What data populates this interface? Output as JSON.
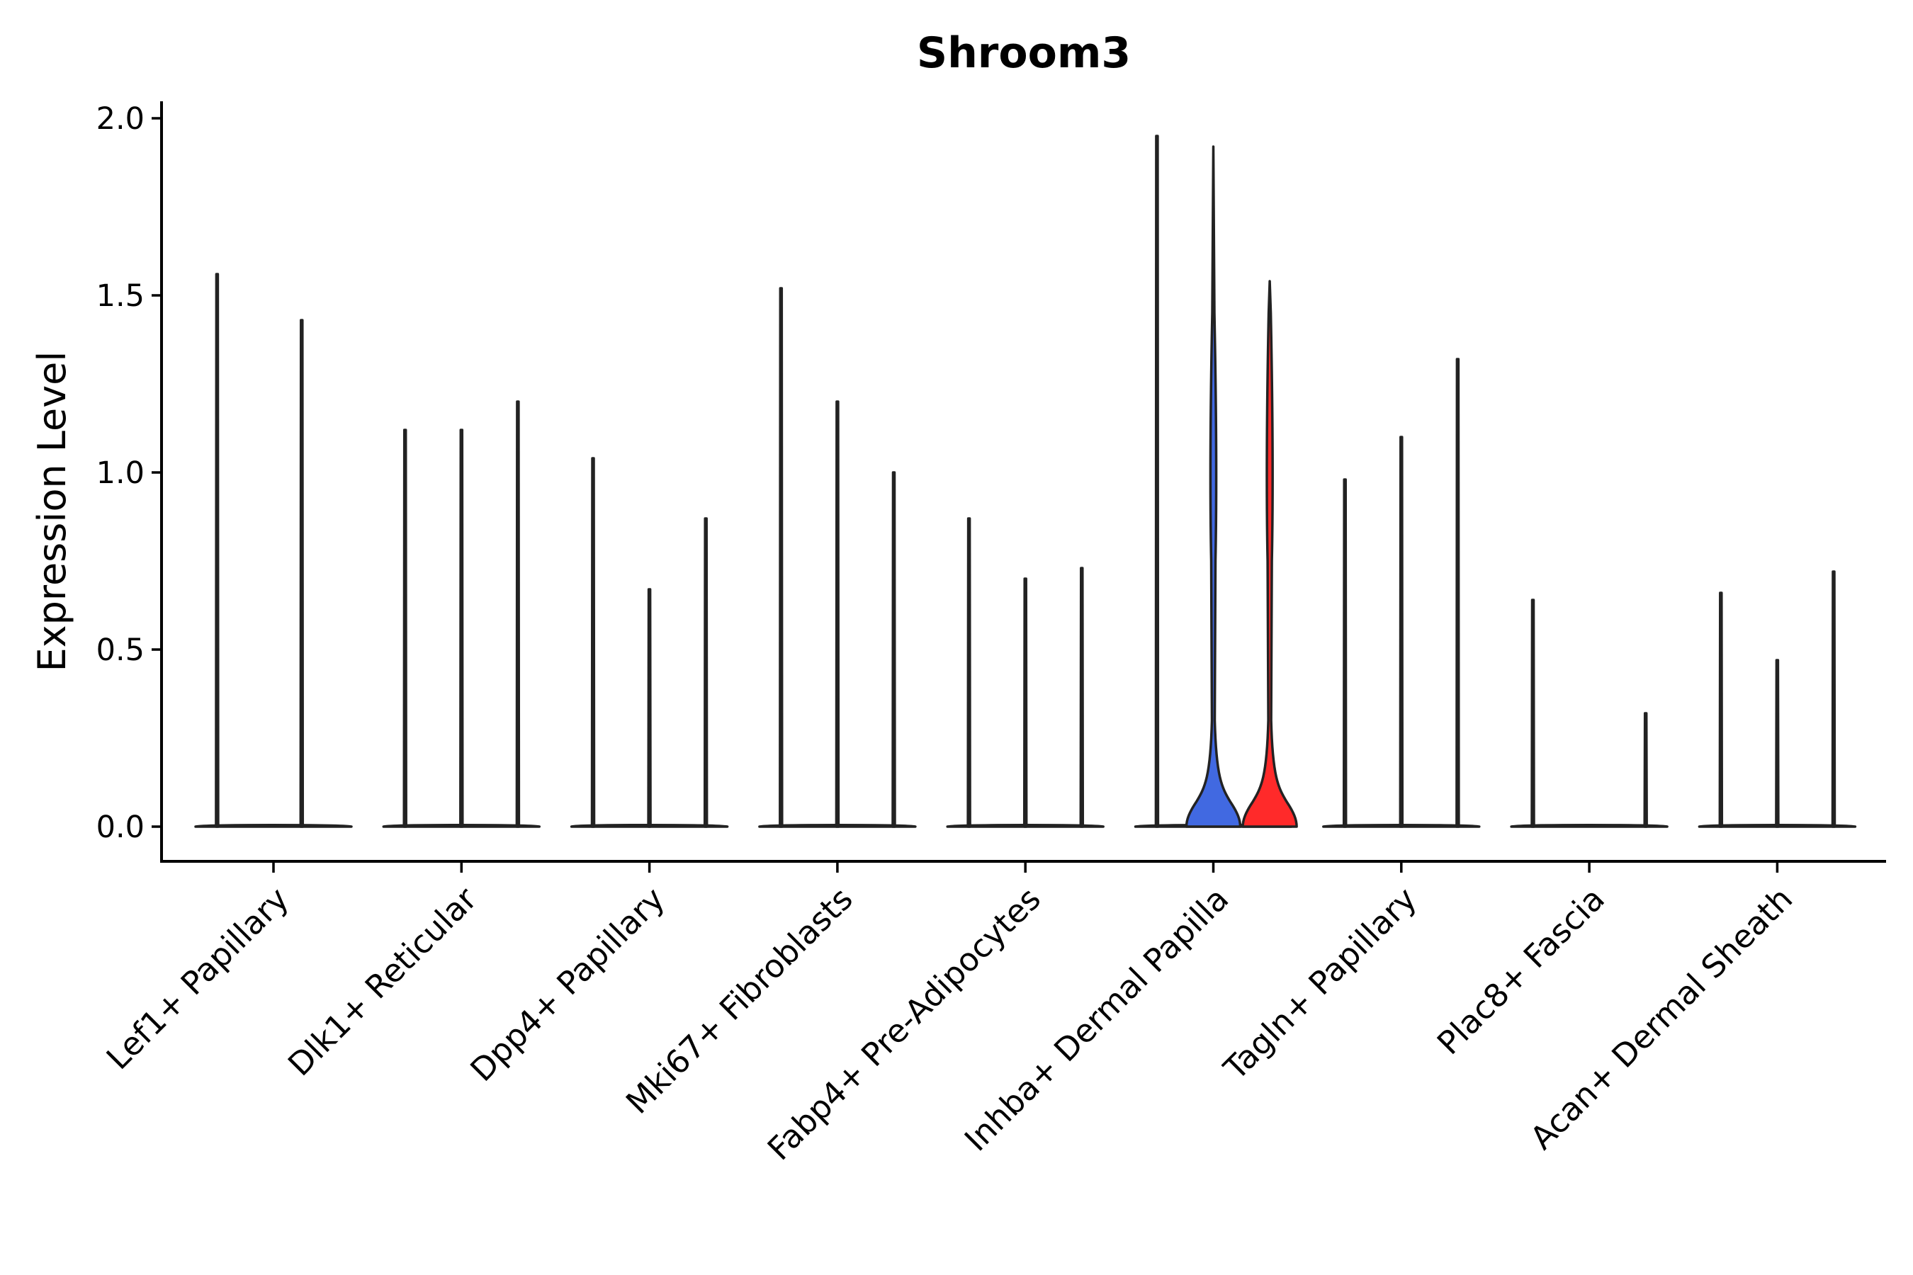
{
  "chart_data": {
    "type": "violin",
    "title": "Shroom3",
    "xlabel": "",
    "ylabel": "Expression Level",
    "ylim": [
      -0.1,
      2.05
    ],
    "yticks": [
      0.0,
      0.5,
      1.0,
      1.5,
      2.0
    ],
    "ytick_labels": [
      "0.0",
      "0.5",
      "1.0",
      "1.5",
      "2.0"
    ],
    "grid": false,
    "categories": [
      "Lef1+ Papillary",
      "Dlk1+ Reticular",
      "Dpp4+ Papillary",
      "Mki67+ Fibroblasts",
      "Fabp4+ Pre-Adipocytes",
      "Inhba+ Dermal Papilla",
      "Tagln+ Papillary",
      "Plac8+ Fascia",
      "Acan+ Dermal Sheath"
    ],
    "violins": [
      {
        "category": 0,
        "offset": -0.3,
        "max": 1.56,
        "color": "#ffffff",
        "shape": "spike"
      },
      {
        "category": 0,
        "offset": 0.15,
        "max": 1.43,
        "color": "#ffffff",
        "shape": "spike"
      },
      {
        "category": 1,
        "offset": -0.3,
        "max": 1.12,
        "color": "#ffffff",
        "shape": "spike"
      },
      {
        "category": 1,
        "offset": 0.0,
        "max": 1.12,
        "color": "#ffffff",
        "shape": "spike"
      },
      {
        "category": 1,
        "offset": 0.3,
        "max": 1.2,
        "color": "#ffffff",
        "shape": "spike"
      },
      {
        "category": 2,
        "offset": -0.3,
        "max": 1.04,
        "color": "#ffffff",
        "shape": "spike"
      },
      {
        "category": 2,
        "offset": 0.0,
        "max": 0.67,
        "color": "#ffffff",
        "shape": "spike"
      },
      {
        "category": 2,
        "offset": 0.3,
        "max": 0.87,
        "color": "#ffffff",
        "shape": "spike"
      },
      {
        "category": 3,
        "offset": -0.3,
        "max": 1.52,
        "color": "#ffffff",
        "shape": "spike"
      },
      {
        "category": 3,
        "offset": 0.0,
        "max": 1.2,
        "color": "#ffffff",
        "shape": "spike"
      },
      {
        "category": 3,
        "offset": 0.3,
        "max": 1.0,
        "color": "#ffffff",
        "shape": "spike"
      },
      {
        "category": 4,
        "offset": -0.3,
        "max": 0.87,
        "color": "#ffffff",
        "shape": "spike"
      },
      {
        "category": 4,
        "offset": 0.0,
        "max": 0.7,
        "color": "#ffffff",
        "shape": "spike"
      },
      {
        "category": 4,
        "offset": 0.3,
        "max": 0.73,
        "color": "#ffffff",
        "shape": "spike"
      },
      {
        "category": 5,
        "offset": -0.3,
        "max": 1.95,
        "color": "#ffffff",
        "shape": "spike"
      },
      {
        "category": 5,
        "offset": 0.0,
        "max": 1.92,
        "color": "#4169e1",
        "shape": "wide"
      },
      {
        "category": 5,
        "offset": 0.3,
        "max": 1.54,
        "color": "#ff2a2a",
        "shape": "wide"
      },
      {
        "category": 6,
        "offset": -0.3,
        "max": 0.98,
        "color": "#ffffff",
        "shape": "spike"
      },
      {
        "category": 6,
        "offset": 0.0,
        "max": 1.1,
        "color": "#ffffff",
        "shape": "spike"
      },
      {
        "category": 6,
        "offset": 0.3,
        "max": 1.32,
        "color": "#ffffff",
        "shape": "spike"
      },
      {
        "category": 7,
        "offset": -0.3,
        "max": 0.64,
        "color": "#ffffff",
        "shape": "spike"
      },
      {
        "category": 7,
        "offset": 0.3,
        "max": 0.32,
        "color": "#ffffff",
        "shape": "spike"
      },
      {
        "category": 8,
        "offset": -0.3,
        "max": 0.66,
        "color": "#ffffff",
        "shape": "spike"
      },
      {
        "category": 8,
        "offset": 0.0,
        "max": 0.47,
        "color": "#ffffff",
        "shape": "spike"
      },
      {
        "category": 8,
        "offset": 0.3,
        "max": 0.72,
        "color": "#ffffff",
        "shape": "spike"
      }
    ]
  }
}
